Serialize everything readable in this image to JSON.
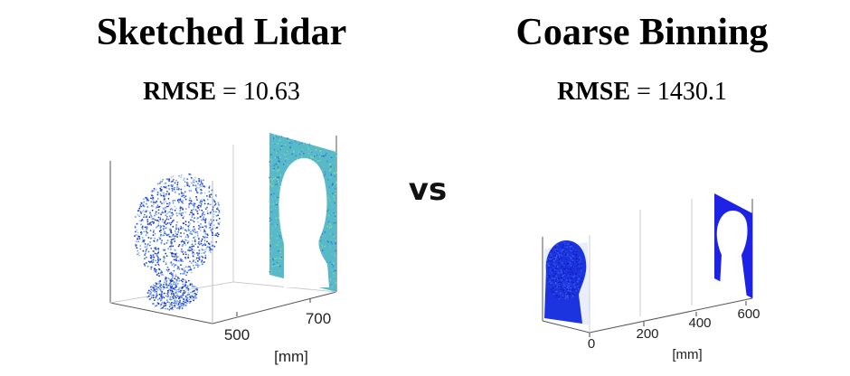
{
  "vs_label": "vs",
  "panels": [
    {
      "title": "Sketched Lidar",
      "metric_name": "RMSE",
      "metric_eq": "=",
      "metric_value": "10.63"
    },
    {
      "title": "Coarse Binning",
      "metric_name": "RMSE",
      "metric_eq": "=",
      "metric_value": "1430.1"
    }
  ],
  "chart_data": [
    {
      "type": "scatter",
      "title": "Sketched Lidar",
      "subtitle": "RMSE = 10.63",
      "xlabel": "[mm]",
      "x_ticks": [
        "500",
        "700"
      ],
      "x_tick_values": [
        500,
        700
      ],
      "description_of_series": [
        "head point cloud",
        "background plane with head silhouette"
      ],
      "colors": {
        "points": "#2a4fd8",
        "background_plane": "#4fb3c8"
      }
    },
    {
      "type": "scatter",
      "title": "Coarse Binning",
      "subtitle": "RMSE = 1430.1",
      "xlabel": "[mm]",
      "x_ticks": [
        "0",
        "200",
        "400",
        "600"
      ],
      "x_tick_values": [
        0,
        200,
        400,
        600
      ],
      "colors": {
        "points": "#1a2fe0",
        "background_plane": "#1e22e6"
      }
    }
  ]
}
